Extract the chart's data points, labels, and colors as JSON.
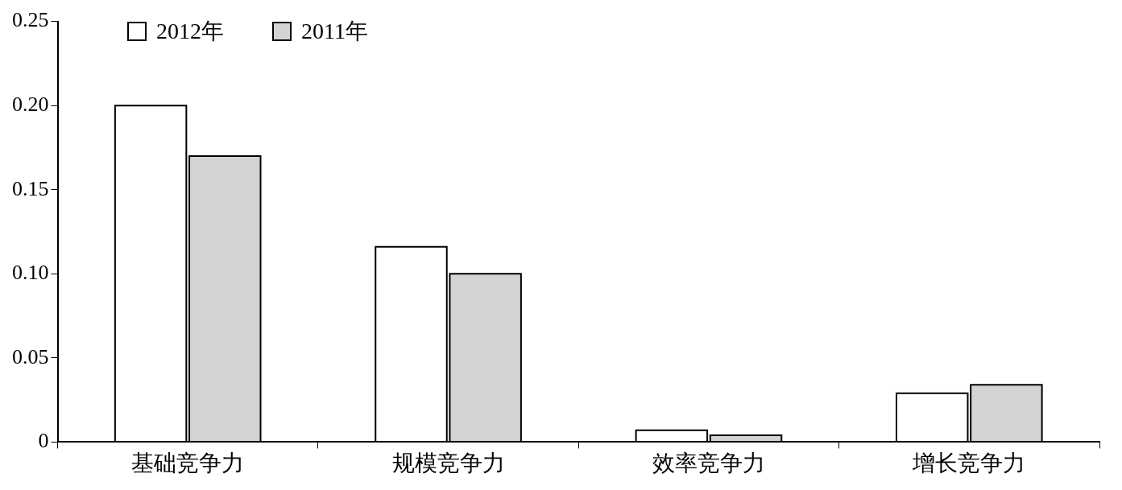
{
  "chart_data": {
    "type": "bar",
    "categories": [
      "基础竞争力",
      "规模竞争力",
      "效率竞争力",
      "增长竞争力"
    ],
    "series": [
      {
        "name": "2012年",
        "color": "#ffffff",
        "values": [
          0.2,
          0.116,
          0.007,
          0.029
        ]
      },
      {
        "name": "2011年",
        "color": "#d3d3d5",
        "values": [
          0.17,
          0.1,
          0.004,
          0.034
        ]
      }
    ],
    "ylim": [
      0,
      0.25
    ],
    "yticks": [
      0,
      {
        "value": 0.05,
        "label": "0.05"
      },
      {
        "value": 0.1,
        "label": "0.10"
      },
      {
        "value": 0.15,
        "label": "0.15"
      },
      {
        "value": 0.2,
        "label": "0.20"
      },
      {
        "value": 0.25,
        "label": "0.25"
      }
    ],
    "grid": false,
    "legend": "top left"
  }
}
